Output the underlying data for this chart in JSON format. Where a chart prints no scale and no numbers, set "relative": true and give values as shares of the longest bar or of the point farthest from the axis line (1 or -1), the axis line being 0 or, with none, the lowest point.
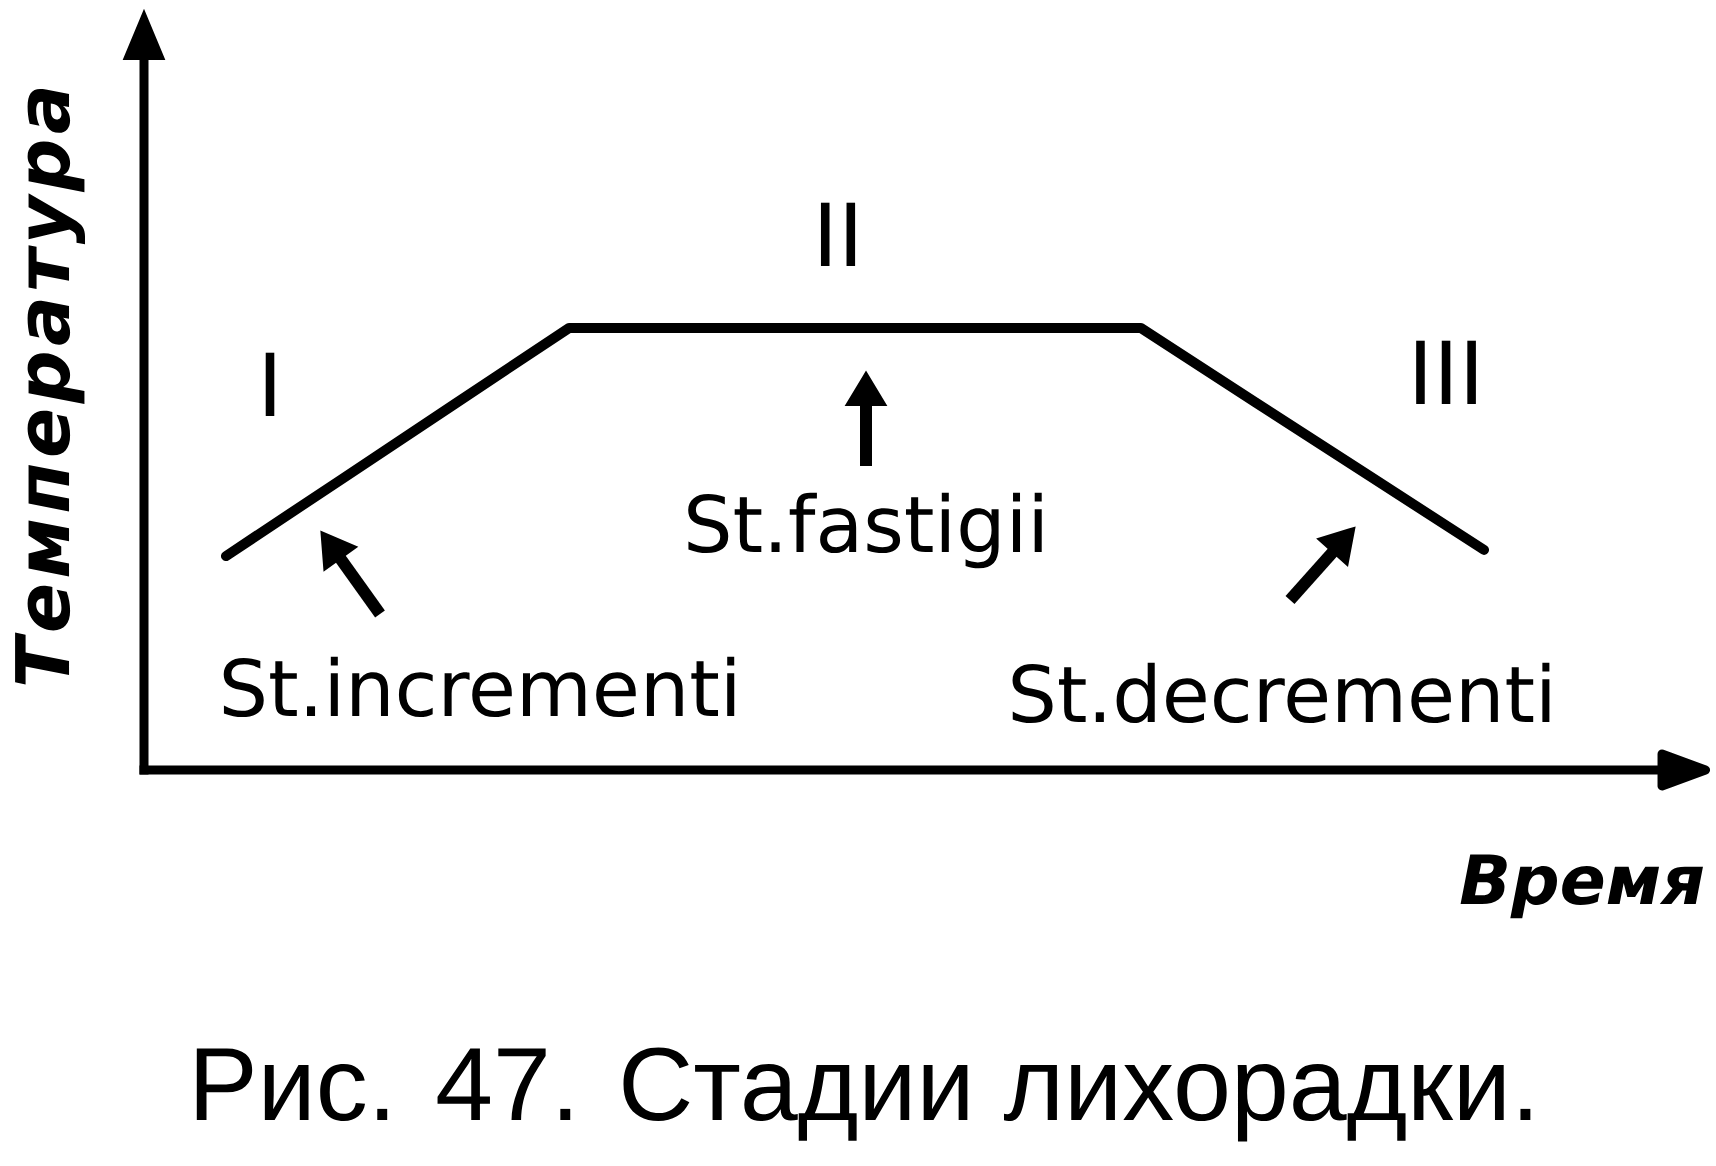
{
  "chart_data": {
    "type": "line",
    "relative": true,
    "tick_labels": false,
    "categories": [
      null,
      null,
      null,
      null,
      null,
      null,
      null,
      null,
      null,
      null,
      null,
      null
    ],
    "values": [
      0.484,
      0.656,
      0.828,
      1,
      1,
      1,
      1,
      1,
      1,
      0.832,
      0.665,
      0.498
    ],
    "color": "#000000",
    "xlabel": "Время",
    "ylabel": "Температура",
    "annotations": [
      "I",
      "II",
      "III",
      "St.incrementi",
      "St.fastigii",
      "St.decrementi",
      "Рис. 47. Стадии лихорадки."
    ]
  }
}
